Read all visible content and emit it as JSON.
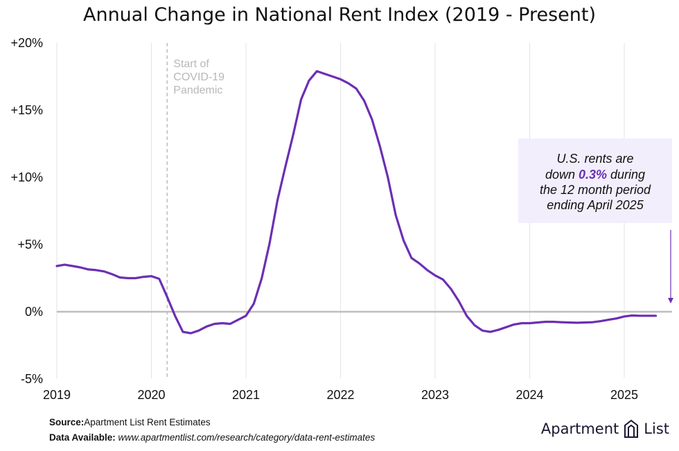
{
  "title": "Annual Change in National Rent Index (2019 - Present)",
  "chart_data": {
    "type": "line",
    "title": "Annual Change in National Rent Index (2019 - Present)",
    "xlabel": "",
    "ylabel": "",
    "xlim": [
      2019.0,
      2025.42
    ],
    "ylim": [
      -5,
      20
    ],
    "x_ticks": [
      2019,
      2020,
      2021,
      2022,
      2023,
      2024,
      2025
    ],
    "x_tick_labels": [
      "2019",
      "2020",
      "2021",
      "2022",
      "2023",
      "2024",
      "2025"
    ],
    "y_ticks": [
      -5,
      0,
      5,
      10,
      15,
      20
    ],
    "y_tick_labels": [
      "-5%",
      "0%",
      "+5%",
      "+10%",
      "+15%",
      "+20%"
    ],
    "grid": "vertical",
    "series": [
      {
        "name": "Annual change in national rent index (%)",
        "color": "#6b2fb3",
        "x": [
          2019.0,
          2019.083,
          2019.167,
          2019.25,
          2019.333,
          2019.417,
          2019.5,
          2019.583,
          2019.667,
          2019.75,
          2019.833,
          2019.917,
          2020.0,
          2020.083,
          2020.167,
          2020.25,
          2020.333,
          2020.417,
          2020.5,
          2020.583,
          2020.667,
          2020.75,
          2020.833,
          2020.917,
          2021.0,
          2021.083,
          2021.167,
          2021.25,
          2021.333,
          2021.417,
          2021.5,
          2021.583,
          2021.667,
          2021.75,
          2021.833,
          2021.917,
          2022.0,
          2022.083,
          2022.167,
          2022.25,
          2022.333,
          2022.417,
          2022.5,
          2022.583,
          2022.667,
          2022.75,
          2022.833,
          2022.917,
          2023.0,
          2023.083,
          2023.167,
          2023.25,
          2023.333,
          2023.417,
          2023.5,
          2023.583,
          2023.667,
          2023.75,
          2023.833,
          2023.917,
          2024.0,
          2024.083,
          2024.167,
          2024.25,
          2024.333,
          2024.417,
          2024.5,
          2024.583,
          2024.667,
          2024.75,
          2024.833,
          2024.917,
          2025.0,
          2025.083,
          2025.167,
          2025.25,
          2025.333
        ],
        "values": [
          3.4,
          3.5,
          3.4,
          3.3,
          3.15,
          3.1,
          3.0,
          2.8,
          2.55,
          2.5,
          2.5,
          2.6,
          2.65,
          2.45,
          1.1,
          -0.3,
          -1.5,
          -1.6,
          -1.4,
          -1.1,
          -0.9,
          -0.85,
          -0.9,
          -0.6,
          -0.3,
          0.6,
          2.5,
          5.1,
          8.3,
          10.8,
          13.2,
          15.8,
          17.2,
          17.9,
          17.7,
          17.5,
          17.3,
          17.0,
          16.6,
          15.7,
          14.3,
          12.3,
          10.0,
          7.2,
          5.3,
          4.0,
          3.6,
          3.1,
          2.7,
          2.4,
          1.7,
          0.8,
          -0.3,
          -1.0,
          -1.4,
          -1.5,
          -1.35,
          -1.15,
          -0.95,
          -0.85,
          -0.85,
          -0.8,
          -0.75,
          -0.75,
          -0.78,
          -0.8,
          -0.82,
          -0.8,
          -0.78,
          -0.7,
          -0.6,
          -0.5,
          -0.35,
          -0.28,
          -0.3,
          -0.3,
          -0.3
        ]
      }
    ],
    "reference_lines": [
      {
        "axis": "y",
        "value": 0,
        "color": "#bdbdbd"
      },
      {
        "axis": "x",
        "value": 2020.167,
        "style": "dashed",
        "color": "#bdbdbd",
        "label": [
          "Start of",
          "COVID-19",
          "Pandemic"
        ]
      }
    ],
    "annotation": {
      "lines": [
        "U.S. rents are",
        "down ",
        "0.3%",
        " during",
        "the 12 month period",
        "ending April 2025"
      ],
      "highlight": "0.3%",
      "highlight_color": "#6b2fb3",
      "background": "#f2eefc",
      "arrow_color": "#6b2fb3"
    }
  },
  "footer": {
    "source_label": "Source:",
    "source_text": "Apartment List Rent Estimates",
    "data_label": "Data Available: ",
    "data_text": "www.apartmentlist.com/research/category/data-rent-estimates"
  },
  "logo": {
    "left": "Apartment",
    "right": "List"
  }
}
